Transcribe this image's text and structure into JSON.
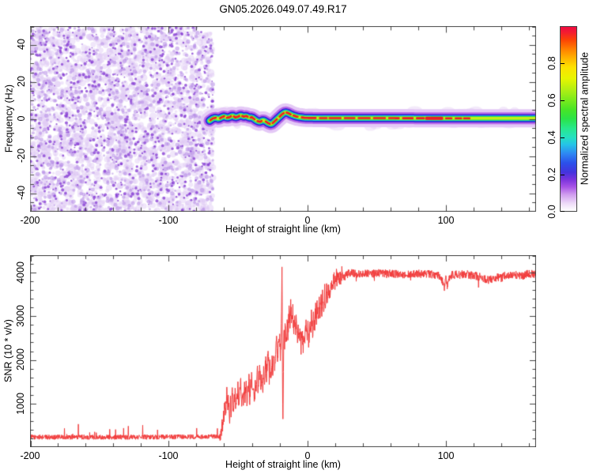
{
  "title": "GN05.2026.049.07.49.R17",
  "colors": {
    "frame": "#444444",
    "curve_red": "#f23d3d",
    "noise_light": "#ddc8f3",
    "noise_mid": "#b48ae6",
    "noise_dark": "#8a42d4"
  },
  "chart_data": [
    {
      "type": "heatmap",
      "name": "doppler-spectrogram",
      "xlabel": "Height of straight line (km)",
      "ylabel": "Frequency (Hz)",
      "xlim": [
        -200,
        165
      ],
      "ylim": [
        -50,
        50
      ],
      "x_major_ticks": [
        -200,
        -100,
        0,
        100
      ],
      "x_minor_step": 20,
      "y_major_ticks": [
        -40,
        -20,
        0,
        20,
        40
      ],
      "y_minor_step": 5,
      "x_tick_labels": [
        "-200",
        "-100",
        "0",
        "100"
      ],
      "y_tick_labels": [
        "40",
        "20",
        "0",
        "-20",
        "-40"
      ],
      "noise_region": {
        "x_range": [
          -200,
          -68
        ],
        "description": "incoherent speckle noise filling full frequency band"
      },
      "ridge": {
        "x_range": [
          -70.5,
          165
        ],
        "path": [
          [
            -70.5,
            -1
          ],
          [
            -68,
            0.3
          ],
          [
            -66,
            0.6
          ],
          [
            -64,
            0
          ],
          [
            -62,
            0.8
          ],
          [
            -60,
            1.4
          ],
          [
            -58,
            0.6
          ],
          [
            -56,
            1
          ],
          [
            -54,
            1.8
          ],
          [
            -52,
            0.8
          ],
          [
            -50,
            1.2
          ],
          [
            -48,
            2
          ],
          [
            -46,
            1.2
          ],
          [
            -44,
            1.6
          ],
          [
            -42,
            0.6
          ],
          [
            -40,
            0.9
          ],
          [
            -38,
            -0.2
          ],
          [
            -36,
            -1.2
          ],
          [
            -34,
            -1.6
          ],
          [
            -32,
            -0.6
          ],
          [
            -30,
            -1.4
          ],
          [
            -28,
            -2.4
          ],
          [
            -26,
            -2.9
          ],
          [
            -24,
            -1.6
          ],
          [
            -22,
            -0.2
          ],
          [
            -20,
            1.2
          ],
          [
            -18,
            2.6
          ],
          [
            -16,
            3.6
          ],
          [
            -14,
            3.2
          ],
          [
            -12,
            2.4
          ],
          [
            -10,
            1.8
          ],
          [
            -8,
            1.3
          ],
          [
            -6,
            1
          ],
          [
            -4,
            0.8
          ],
          [
            -2,
            0.6
          ],
          [
            0,
            0.5
          ],
          [
            20,
            0.4
          ],
          [
            60,
            0.4
          ],
          [
            120,
            0.3
          ],
          [
            165,
            0.3
          ]
        ],
        "layers": [
          {
            "color": "#e4c9f6",
            "width": 23
          },
          {
            "color": "#b66ae8",
            "width": 15
          },
          {
            "color": "#4a18cf",
            "width": 10.5
          },
          {
            "color": "#1b2fe0",
            "width": 8.6
          },
          {
            "color": "#17c3ea",
            "width": 7
          },
          {
            "color": "#2ae24c",
            "width": 5.4
          },
          {
            "color": "#c6ee17",
            "width": 3.6
          }
        ],
        "red_color": "#ee1c25",
        "red_segments": [
          [
            -70,
            -66
          ],
          [
            -63,
            -60
          ],
          [
            -58,
            -55
          ],
          [
            -53,
            -49
          ],
          [
            -47,
            -43
          ],
          [
            -41,
            -38
          ],
          [
            -36,
            -33
          ],
          [
            -30,
            -27
          ],
          [
            -25,
            -22
          ],
          [
            -20,
            -17
          ],
          [
            -15,
            -12
          ],
          [
            -10,
            -7
          ],
          [
            -4,
            6
          ],
          [
            9,
            14
          ],
          [
            16,
            24
          ],
          [
            27,
            34
          ],
          [
            37,
            45
          ],
          [
            48,
            56
          ],
          [
            59,
            66
          ],
          [
            69,
            76
          ],
          [
            79,
            84
          ],
          [
            86,
            97
          ],
          [
            100,
            104
          ],
          [
            107,
            111
          ],
          [
            113,
            117
          ]
        ],
        "thick_red_segment": [
          86,
          97
        ]
      },
      "colorbar": {
        "label": "Normalized spectral amplitude",
        "range": [
          0,
          1
        ],
        "ticks": [
          0.0,
          0.2,
          0.4,
          0.6,
          0.8
        ],
        "tick_labels": [
          "0.0",
          "0.2",
          "0.4",
          "0.6",
          "0.8"
        ],
        "gradient_stops": [
          "#ffffff 0%",
          "#eedcf8 4%",
          "#cf9bee 9%",
          "#a855e6 13%",
          "#7a33dd 17%",
          "#4433dd 21%",
          "#2b50ea 26%",
          "#2e86f2 31%",
          "#25c3e8 36%",
          "#25e0c0 40%",
          "#28e88a 45%",
          "#2ae348 50%",
          "#47e426 55%",
          "#78ea1d 60%",
          "#b2ef13 66%",
          "#e8f500 72%",
          "#fde200 78%",
          "#ffb300 83%",
          "#ff7e00 88%",
          "#fb4205 93%",
          "#f31b31 97%",
          "#ee0b3f 100%"
        ]
      }
    },
    {
      "type": "line",
      "name": "snr-profile",
      "xlabel": "Height of straight line (km)",
      "ylabel": "SNR (10 * v/v)",
      "xlim": [
        -200,
        165
      ],
      "ylim": [
        0,
        4400
      ],
      "x_major_ticks": [
        -200,
        -100,
        0,
        100
      ],
      "x_minor_step": 20,
      "y_major_ticks": [
        1000,
        2000,
        3000,
        4000
      ],
      "y_minor_step": 200,
      "x_tick_labels": [
        "-200",
        "-100",
        "0",
        "100"
      ],
      "y_tick_labels": [
        "1000",
        "2000",
        "3000",
        "4000"
      ],
      "color": "#f23d3d",
      "points": [
        [
          -200,
          230
        ],
        [
          -120,
          230
        ],
        [
          -63,
          240
        ],
        [
          -62,
          380
        ],
        [
          -61.5,
          650
        ],
        [
          -61,
          420
        ],
        [
          -60.5,
          900
        ],
        [
          -60,
          600
        ],
        [
          -59.5,
          1100
        ],
        [
          -59,
          750
        ],
        [
          -58,
          1250
        ],
        [
          -57.5,
          800
        ],
        [
          -57,
          1050
        ],
        [
          -56,
          700
        ],
        [
          -55.5,
          1150
        ],
        [
          -55,
          850
        ],
        [
          -54,
          1300
        ],
        [
          -53.5,
          750
        ],
        [
          -53,
          1000
        ],
        [
          -52,
          1250
        ],
        [
          -51.5,
          800
        ],
        [
          -51,
          1100
        ],
        [
          -50,
          1350
        ],
        [
          -49.5,
          900
        ],
        [
          -49,
          1200
        ],
        [
          -48,
          1500
        ],
        [
          -47.5,
          950
        ],
        [
          -47,
          1250
        ],
        [
          -46,
          1000
        ],
        [
          -45.5,
          1500
        ],
        [
          -45,
          1100
        ],
        [
          -44,
          1400
        ],
        [
          -43.5,
          950
        ],
        [
          -43,
          1300
        ],
        [
          -42,
          1600
        ],
        [
          -41.5,
          1050
        ],
        [
          -41,
          1350
        ],
        [
          -40,
          1650
        ],
        [
          -39.5,
          1150
        ],
        [
          -39,
          1450
        ],
        [
          -38,
          1100
        ],
        [
          -37.5,
          1500
        ],
        [
          -37,
          1200
        ],
        [
          -36,
          1750
        ],
        [
          -35.5,
          1250
        ],
        [
          -35,
          1550
        ],
        [
          -34,
          1900
        ],
        [
          -33.5,
          1350
        ],
        [
          -33,
          1700
        ],
        [
          -32,
          1300
        ],
        [
          -31.5,
          1800
        ],
        [
          -31,
          1400
        ],
        [
          -30,
          2050
        ],
        [
          -29.5,
          1500
        ],
        [
          -29,
          1850
        ],
        [
          -28,
          2150
        ],
        [
          -27.5,
          1550
        ],
        [
          -27,
          1900
        ],
        [
          -26,
          1450
        ],
        [
          -25.5,
          2000
        ],
        [
          -25,
          1600
        ],
        [
          -24,
          2250
        ],
        [
          -23.5,
          1700
        ],
        [
          -23,
          2100
        ],
        [
          -22,
          2550
        ],
        [
          -21.5,
          1850
        ],
        [
          -21,
          2300
        ],
        [
          -20,
          2650
        ],
        [
          -19.5,
          2050
        ],
        [
          -19,
          2450
        ],
        [
          -18.6,
          3100
        ],
        [
          -18.2,
          4230
        ],
        [
          -17.9,
          1500
        ],
        [
          -17.6,
          560
        ],
        [
          -17.2,
          1900
        ],
        [
          -16.8,
          2900
        ],
        [
          -16.4,
          2200
        ],
        [
          -16,
          2850
        ],
        [
          -15,
          2400
        ],
        [
          -14.5,
          3050
        ],
        [
          -14,
          2600
        ],
        [
          -13,
          3200
        ],
        [
          -12.5,
          2700
        ],
        [
          -12,
          3300
        ],
        [
          -11,
          2750
        ],
        [
          -10.5,
          3150
        ],
        [
          -10,
          2650
        ],
        [
          -9,
          3050
        ],
        [
          -8.5,
          2500
        ],
        [
          -8,
          2950
        ],
        [
          -7,
          2400
        ],
        [
          -6.5,
          2850
        ],
        [
          -6,
          2350
        ],
        [
          -5,
          2800
        ],
        [
          -4.5,
          2300
        ],
        [
          -4,
          2750
        ],
        [
          -3,
          2200
        ],
        [
          -2.5,
          2650
        ],
        [
          -2,
          2350
        ],
        [
          -1,
          2750
        ],
        [
          0,
          2450
        ],
        [
          0.5,
          2900
        ],
        [
          1,
          2400
        ],
        [
          2,
          2950
        ],
        [
          2.5,
          2500
        ],
        [
          3,
          3000
        ],
        [
          4,
          2600
        ],
        [
          4.5,
          3100
        ],
        [
          5,
          2650
        ],
        [
          6,
          3200
        ],
        [
          6.5,
          2750
        ],
        [
          7,
          3250
        ],
        [
          8,
          2850
        ],
        [
          8.5,
          3350
        ],
        [
          9,
          2950
        ],
        [
          10,
          3450
        ],
        [
          10.5,
          3050
        ],
        [
          11,
          3500
        ],
        [
          12,
          3150
        ],
        [
          12.5,
          3550
        ],
        [
          13,
          3250
        ],
        [
          14,
          3650
        ],
        [
          14.5,
          3350
        ],
        [
          15,
          3700
        ],
        [
          16,
          3450
        ],
        [
          17,
          3750
        ],
        [
          18,
          3550
        ],
        [
          19,
          3850
        ],
        [
          20,
          3700
        ],
        [
          21,
          3900
        ],
        [
          22,
          3800
        ],
        [
          23,
          3950
        ],
        [
          24,
          3850
        ],
        [
          25,
          3980
        ],
        [
          27,
          3900
        ],
        [
          30,
          3990
        ],
        [
          40,
          3970
        ],
        [
          55,
          3990
        ],
        [
          70,
          3960
        ],
        [
          85,
          3980
        ],
        [
          96,
          3930
        ],
        [
          99,
          3650
        ],
        [
          100,
          3900
        ],
        [
          101,
          3620
        ],
        [
          102,
          3880
        ],
        [
          104,
          3950
        ],
        [
          115,
          3960
        ],
        [
          125,
          3900
        ],
        [
          130,
          3830
        ],
        [
          135,
          3870
        ],
        [
          145,
          3950
        ],
        [
          155,
          3930
        ],
        [
          160,
          3980
        ],
        [
          165,
          3960
        ]
      ],
      "noise_segments": [
        {
          "x0": -200,
          "x1": -63,
          "amp": 55,
          "spike": 250,
          "spike_p": 0.03
        },
        {
          "x0": -63,
          "x1": -19,
          "amp": 170
        },
        {
          "x0": -19,
          "x1": -16,
          "amp": 120
        },
        {
          "x0": -16,
          "x1": 25,
          "amp": 200
        },
        {
          "x0": 25,
          "x1": 165,
          "amp": 95,
          "dip": -260,
          "dip_p": 0.012
        }
      ]
    }
  ]
}
